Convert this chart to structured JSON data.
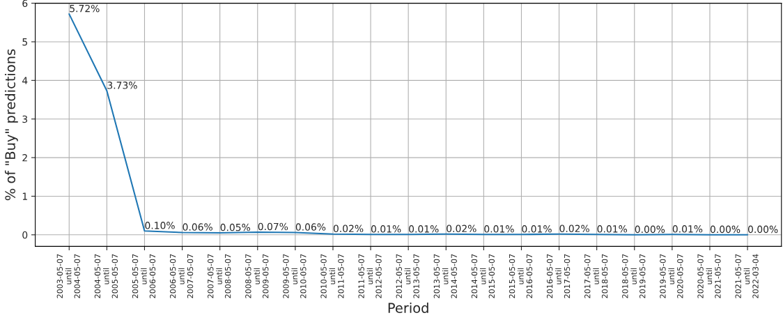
{
  "chart_data": {
    "type": "line",
    "xlabel": "Period",
    "ylabel": "% of \"Buy\" predictions",
    "categories": [
      "2003-05-07\nuntil\n2004-05-07",
      "2004-05-07\nuntil\n2005-05-07",
      "2005-05-07\nuntil\n2006-05-07",
      "2006-05-07\nuntil\n2007-05-07",
      "2007-05-07\nuntil\n2008-05-07",
      "2008-05-07\nuntil\n2009-05-07",
      "2009-05-07\nuntil\n2010-05-07",
      "2010-05-07\nuntil\n2011-05-07",
      "2011-05-07\nuntil\n2012-05-07",
      "2012-05-07\nuntil\n2013-05-07",
      "2013-05-07\nuntil\n2014-05-07",
      "2014-05-07\nuntil\n2015-05-07",
      "2015-05-07\nuntil\n2016-05-07",
      "2016-05-07\nuntil\n2017-05-07",
      "2017-05-07\nuntil\n2018-05-07",
      "2018-05-07\nuntil\n2019-05-07",
      "2019-05-07\nuntil\n2020-05-07",
      "2020-05-07\nuntil\n2021-05-07",
      "2021-05-07\nuntil\n2022-03-04"
    ],
    "series": [
      {
        "color": "#1f77b4",
        "values": [
          5.72,
          3.73,
          0.1,
          0.06,
          0.05,
          0.07,
          0.06,
          0.02,
          0.01,
          0.01,
          0.02,
          0.01,
          0.01,
          0.02,
          0.01,
          0.0,
          0.01,
          0.0,
          0.0
        ],
        "value_labels": [
          "5.72%",
          "3.73%",
          "0.10%",
          "0.06%",
          "0.05%",
          "0.07%",
          "0.06%",
          "0.02%",
          "0.01%",
          "0.01%",
          "0.02%",
          "0.01%",
          "0.01%",
          "0.02%",
          "0.01%",
          "0.00%",
          "0.01%",
          "0.00%",
          "0.00%"
        ]
      }
    ],
    "ylim": [
      -0.3,
      6
    ],
    "yticks": [
      0,
      1,
      2,
      3,
      4,
      5,
      6
    ],
    "grid": true
  }
}
